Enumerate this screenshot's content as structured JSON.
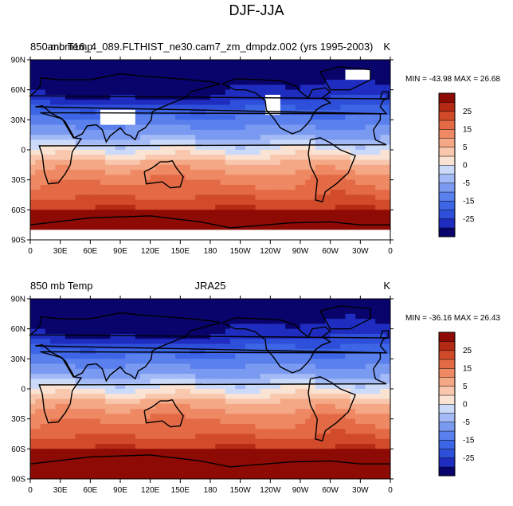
{
  "title": "DJF-JJA",
  "colors": {
    "land_outline": "#000000",
    "missing": "#ffffff",
    "levels": [
      "#08046b",
      "#1f2cc0",
      "#2e4fd9",
      "#3d66e6",
      "#5a80ee",
      "#7a9af2",
      "#a3baf6",
      "#ccdaf9",
      "#fbe3d3",
      "#f8c7ad",
      "#f4a885",
      "#ee8964",
      "#e36a45",
      "#d14a2a",
      "#b52a15",
      "#8e0a05"
    ]
  },
  "panels": [
    {
      "left_label": "850 mb Temp",
      "center_label": "anom16_4_089.FLTHIST_ne30.cam7_zm_dmpdz.002 (yrs 1995-2003)",
      "units": "K",
      "stats": "MIN = -43.98 MAX =  26.68",
      "has_missing": true
    },
    {
      "left_label": "850 mb Temp",
      "center_label": "JRA25",
      "units": "K",
      "stats": "MIN = -36.16 MAX =  26.43",
      "has_missing": false
    }
  ],
  "lat_labels": [
    "90N",
    "60N",
    "30N",
    "0",
    "30S",
    "60S",
    "90S"
  ],
  "lon_labels": [
    "0",
    "30E",
    "60E",
    "90E",
    "120E",
    "150E",
    "180",
    "150W",
    "120W",
    "90W",
    "60W",
    "30W",
    "0"
  ],
  "colorbar_labels": [
    "25",
    "15",
    "5",
    "0",
    "-5",
    "-15",
    "-25"
  ]
}
